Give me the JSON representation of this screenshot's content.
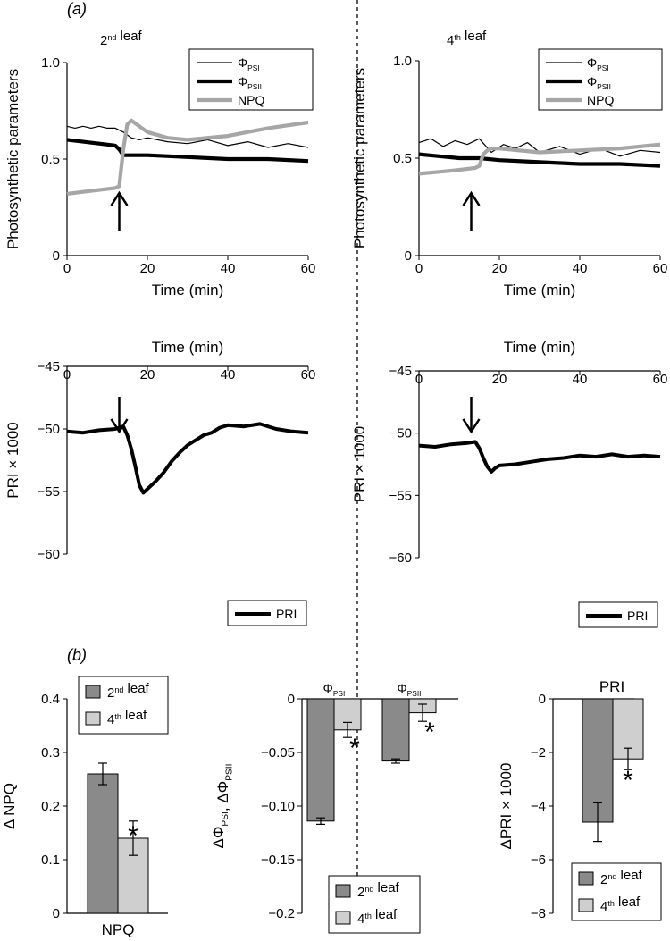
{
  "panel_labels": {
    "a": "(a)",
    "b": "(b)"
  },
  "chart_data": [
    {
      "id": "a_2nd_top",
      "type": "line",
      "title": "2nd leaf",
      "xlabel": "Time (min)",
      "ylabel": "Photosynthetic parameters",
      "xlim": [
        0,
        60
      ],
      "ylim": [
        0,
        1.0
      ],
      "xticks": [
        "0",
        "20",
        "40",
        "60"
      ],
      "yticks": [
        "0",
        "0.5",
        "1.0"
      ],
      "annotation": "arrow at 13 min",
      "series": [
        {
          "name": "ΦPSI",
          "x": [
            0,
            2,
            4,
            6,
            8,
            10,
            12,
            14,
            16,
            18,
            20,
            25,
            30,
            35,
            40,
            45,
            50,
            55,
            60
          ],
          "y": [
            0.67,
            0.66,
            0.67,
            0.66,
            0.67,
            0.66,
            0.66,
            0.64,
            0.61,
            0.6,
            0.61,
            0.59,
            0.58,
            0.6,
            0.57,
            0.59,
            0.56,
            0.58,
            0.56
          ]
        },
        {
          "name": "ΦPSII",
          "x": [
            0,
            4,
            8,
            12,
            13,
            14,
            15,
            20,
            30,
            40,
            50,
            60
          ],
          "y": [
            0.6,
            0.59,
            0.58,
            0.57,
            0.55,
            0.52,
            0.52,
            0.52,
            0.51,
            0.5,
            0.5,
            0.49
          ]
        },
        {
          "name": "NPQ",
          "x": [
            0,
            4,
            8,
            12,
            13,
            14,
            15,
            16,
            20,
            25,
            30,
            40,
            50,
            60
          ],
          "y": [
            0.32,
            0.33,
            0.34,
            0.35,
            0.36,
            0.55,
            0.68,
            0.7,
            0.64,
            0.61,
            0.6,
            0.62,
            0.66,
            0.69
          ]
        }
      ]
    },
    {
      "id": "a_4th_top",
      "type": "line",
      "title": "4th leaf",
      "xlabel": "Time (min)",
      "ylabel": "Photosynthetic parameters",
      "xlim": [
        0,
        60
      ],
      "ylim": [
        0,
        1.0
      ],
      "xticks": [
        "0",
        "20",
        "40",
        "60"
      ],
      "yticks": [
        "0",
        "0.5",
        "1.0"
      ],
      "annotation": "arrow at 13 min",
      "series": [
        {
          "name": "ΦPSI",
          "x": [
            0,
            3,
            6,
            9,
            12,
            15,
            18,
            21,
            24,
            27,
            30,
            35,
            40,
            45,
            50,
            55,
            60
          ],
          "y": [
            0.58,
            0.6,
            0.56,
            0.59,
            0.57,
            0.6,
            0.53,
            0.57,
            0.55,
            0.58,
            0.53,
            0.56,
            0.52,
            0.55,
            0.51,
            0.54,
            0.53
          ]
        },
        {
          "name": "ΦPSII",
          "x": [
            0,
            5,
            10,
            15,
            20,
            30,
            40,
            50,
            60
          ],
          "y": [
            0.52,
            0.51,
            0.5,
            0.5,
            0.49,
            0.48,
            0.47,
            0.47,
            0.46
          ]
        },
        {
          "name": "NPQ",
          "x": [
            0,
            5,
            10,
            14,
            15,
            16,
            17,
            18,
            20,
            30,
            40,
            50,
            60
          ],
          "y": [
            0.42,
            0.43,
            0.44,
            0.45,
            0.46,
            0.52,
            0.54,
            0.55,
            0.55,
            0.53,
            0.54,
            0.55,
            0.57
          ]
        }
      ]
    },
    {
      "id": "a_2nd_bottom",
      "type": "line",
      "title": "Time (min)",
      "xlabel": "Time (min)",
      "ylabel": "PRI × 1000",
      "xlim": [
        0,
        60
      ],
      "ylim": [
        -60,
        -45
      ],
      "xticks": [
        "0",
        "20",
        "40",
        "60"
      ],
      "yticks": [
        "−45",
        "−50",
        "−55",
        "−60"
      ],
      "annotation": "arrow at 13 min",
      "series": [
        {
          "name": "PRI",
          "x": [
            0,
            4,
            8,
            12,
            14,
            15,
            16,
            17,
            18,
            19,
            20,
            22,
            24,
            26,
            28,
            30,
            32,
            34,
            36,
            38,
            40,
            44,
            48,
            52,
            56,
            60
          ],
          "y": [
            -50.2,
            -50.3,
            -50.1,
            -50.0,
            -49.8,
            -50.5,
            -51.6,
            -53.0,
            -54.5,
            -55.1,
            -54.8,
            -54.2,
            -53.5,
            -52.6,
            -51.9,
            -51.3,
            -50.9,
            -50.5,
            -50.3,
            -49.9,
            -49.7,
            -49.8,
            -49.6,
            -50.0,
            -50.2,
            -50.3
          ]
        }
      ]
    },
    {
      "id": "a_4th_bottom",
      "type": "line",
      "title": "Time (min)",
      "xlabel": "Time (min)",
      "ylabel": "PRI × 1000",
      "xlim": [
        0,
        60
      ],
      "ylim": [
        -60,
        -45
      ],
      "xticks": [
        "0",
        "20",
        "40",
        "60"
      ],
      "yticks": [
        "−45",
        "−50",
        "−55",
        "−60"
      ],
      "annotation": "arrow at 13 min",
      "series": [
        {
          "name": "PRI",
          "x": [
            0,
            4,
            8,
            12,
            14,
            15,
            16,
            17,
            18,
            19,
            20,
            24,
            28,
            32,
            36,
            40,
            44,
            48,
            52,
            56,
            60
          ],
          "y": [
            -51.0,
            -51.1,
            -50.9,
            -50.8,
            -50.7,
            -51.2,
            -52.0,
            -52.7,
            -53.1,
            -52.8,
            -52.6,
            -52.5,
            -52.3,
            -52.1,
            -52.0,
            -51.8,
            -51.9,
            -51.7,
            -51.9,
            -51.8,
            -51.9
          ]
        }
      ]
    },
    {
      "id": "b_npq",
      "type": "bar",
      "title": "",
      "xlabel": "NPQ",
      "ylabel": "Δ NPQ",
      "ylim": [
        0,
        0.4
      ],
      "yticks": [
        "0",
        "0.1",
        "0.2",
        "0.3",
        "0.4"
      ],
      "categories": [
        "NPQ"
      ],
      "series": [
        {
          "name": "2nd leaf",
          "values": [
            0.26
          ],
          "errors": [
            0.02
          ]
        },
        {
          "name": "4th leaf",
          "values": [
            0.14
          ],
          "errors": [
            0.032
          ]
        }
      ],
      "significance": [
        "*"
      ]
    },
    {
      "id": "b_phi",
      "type": "bar",
      "title": "",
      "xlabel": "",
      "ylabel": "ΔΦPSI, ΔΦPSII",
      "ylim": [
        -0.2,
        0
      ],
      "yticks": [
        "0",
        "−0.05",
        "−0.10",
        "−0.15",
        "−0.2"
      ],
      "categories": [
        "ΦPSI",
        "ΦPSII"
      ],
      "series": [
        {
          "name": "2nd leaf",
          "values": [
            -0.114,
            -0.058
          ],
          "errors": [
            0.003,
            0.002
          ]
        },
        {
          "name": "4th leaf",
          "values": [
            -0.029,
            -0.013
          ],
          "errors": [
            0.007,
            0.008
          ]
        }
      ],
      "significance": [
        "*",
        "*"
      ]
    },
    {
      "id": "b_pri",
      "type": "bar",
      "title": "PRI",
      "xlabel": "",
      "ylabel": "ΔPRI × 1000",
      "ylim": [
        -8,
        0
      ],
      "yticks": [
        "0",
        "−2",
        "−4",
        "−6",
        "−8"
      ],
      "categories": [
        "PRI"
      ],
      "series": [
        {
          "name": "2nd leaf",
          "values": [
            -4.6
          ],
          "errors": [
            0.72
          ]
        },
        {
          "name": "4th leaf",
          "values": [
            -2.24
          ],
          "errors": [
            0.4
          ]
        }
      ],
      "significance": [
        "*"
      ]
    }
  ],
  "colors": {
    "bar_2nd": "#8a8a8a",
    "bar_4th": "#cfcfcf",
    "npq_line": "#a6a6a6",
    "line": "#000000"
  }
}
